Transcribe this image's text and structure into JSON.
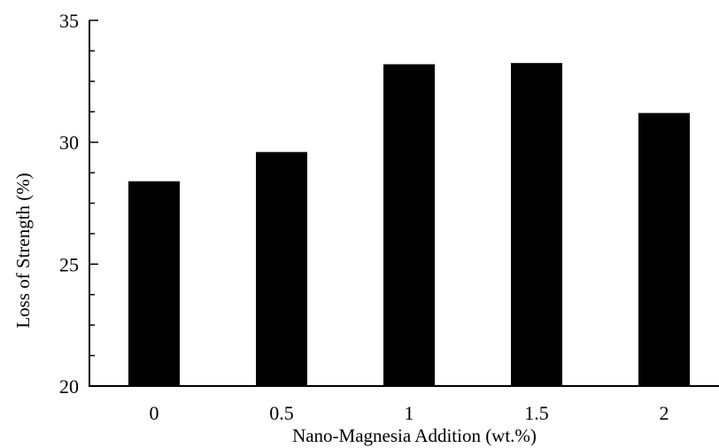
{
  "chart_data": {
    "type": "bar",
    "title": "",
    "xlabel": "Nano-Magnesia Addition (wt.%)",
    "ylabel": "Loss of Strength (%)",
    "categories": [
      "0",
      "0.5",
      "1",
      "1.5",
      "2"
    ],
    "values": [
      28.4,
      29.6,
      33.2,
      33.25,
      31.2
    ],
    "ylim": [
      20,
      35
    ],
    "yticks": [
      "20",
      "25",
      "30",
      "35"
    ],
    "grid": false,
    "legend": "none",
    "bar_color": "#000000",
    "axis_color": "#000000"
  }
}
